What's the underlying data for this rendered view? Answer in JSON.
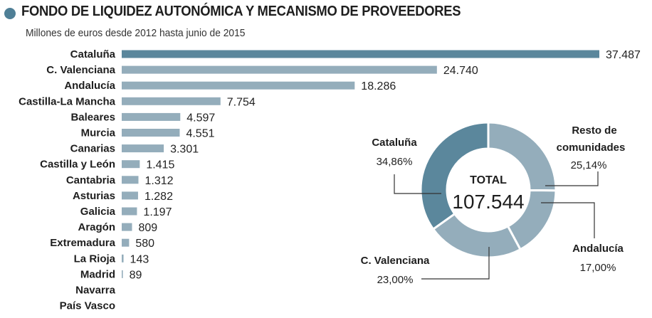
{
  "header": {
    "title": "FONDO DE LIQUIDEZ AUTONÓMICA Y MECANISMO DE PROVEEDORES",
    "subtitle": "Millones de euros desde 2012 hasta junio de 2015"
  },
  "colors": {
    "accent": "#4f7f96",
    "bar_highlight": "#5b879c",
    "bar": "#94adbb",
    "donut_catalunya": "#5b879c",
    "donut_other": "#94adbb",
    "leader": "#333333"
  },
  "chart_data": [
    {
      "type": "bar",
      "orientation": "horizontal",
      "title": "FONDO DE LIQUIDEZ AUTONÓMICA Y MECANISMO DE PROVEEDORES",
      "subtitle": "Millones de euros desde 2012 hasta junio de 2015",
      "xlim": [
        0,
        37487
      ],
      "grid": false,
      "categories": [
        "Cataluña",
        "C. Valenciana",
        "Andalucía",
        "Castilla-La Mancha",
        "Baleares",
        "Murcia",
        "Canarias",
        "Castilla y León",
        "Cantabria",
        "Asturias",
        "Galicia",
        "Aragón",
        "Extremadura",
        "La Rioja",
        "Madrid",
        "Navarra",
        "País Vasco"
      ],
      "values": [
        37487,
        24740,
        18286,
        7754,
        4597,
        4551,
        3301,
        1415,
        1312,
        1282,
        1197,
        809,
        580,
        143,
        89,
        null,
        null
      ],
      "value_labels": [
        "37.487",
        "24.740",
        "18.286",
        "7.754",
        "4.597",
        "4.551",
        "3.301",
        "1.415",
        "1.312",
        "1.282",
        "1.197",
        "809",
        "580",
        "143",
        "89",
        "",
        ""
      ]
    },
    {
      "type": "pie",
      "variant": "donut",
      "center_label": "TOTAL",
      "center_value": "107.544",
      "slices": [
        {
          "name": "Cataluña",
          "label": "Cataluña",
          "value": 34.86,
          "pct_label": "34,86%"
        },
        {
          "name": "Resto de comunidades",
          "label": "Resto de comunidades",
          "label_lines": [
            "Resto de",
            "comunidades"
          ],
          "value": 25.14,
          "pct_label": "25,14%"
        },
        {
          "name": "Andalucía",
          "label": "Andalucía",
          "value": 17.0,
          "pct_label": "17,00%"
        },
        {
          "name": "C. Valenciana",
          "label": "C. Valenciana",
          "value": 23.0,
          "pct_label": "23,00%"
        }
      ]
    }
  ]
}
